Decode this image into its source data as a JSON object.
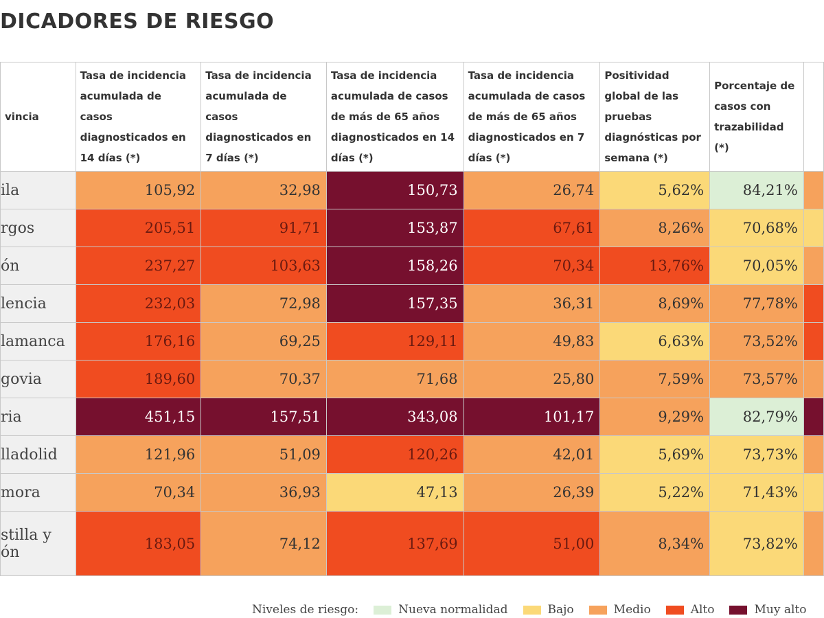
{
  "header": {
    "title": "DICADORES DE RIESGO"
  },
  "table": {
    "columns": [
      "vincia",
      "Tasa de incidencia acumulada de casos diagnosticados en 14 días (*)",
      "Tasa de incidencia acumulada de casos diagnosticados en 7 días (*)",
      "Tasa de incidencia acumulada de casos de más de 65 años diagnosticados en 14 días (*)",
      "Tasa de incidencia acumulada de casos de más de 65 años diagnosticados en 7 días (*)",
      "Positividad global de las pruebas diagnósticas por semana (*)",
      "Porcentaje de casos con trazabilidad (*)"
    ],
    "rows": [
      {
        "label": "ila",
        "cells": [
          {
            "text": "105,92",
            "color": "#f6a25c"
          },
          {
            "text": "32,98",
            "color": "#f6a25c"
          },
          {
            "text": "150,73",
            "color": "#76102e"
          },
          {
            "text": "26,74",
            "color": "#f6a25c"
          },
          {
            "text": "5,62%",
            "color": "#fbd978"
          },
          {
            "text": "84,21%",
            "color": "#dcefd6"
          }
        ],
        "edge": "#f6a25c"
      },
      {
        "label": "rgos",
        "cells": [
          {
            "text": "205,51",
            "color": "#f04c20"
          },
          {
            "text": "91,71",
            "color": "#f04c20"
          },
          {
            "text": "153,87",
            "color": "#76102e"
          },
          {
            "text": "67,61",
            "color": "#f04c20"
          },
          {
            "text": "8,26%",
            "color": "#f6a25c"
          },
          {
            "text": "70,68%",
            "color": "#fbd978"
          }
        ],
        "edge": "#fbd978"
      },
      {
        "label": "ón",
        "cells": [
          {
            "text": "237,27",
            "color": "#f04c20"
          },
          {
            "text": "103,63",
            "color": "#f04c20"
          },
          {
            "text": "158,26",
            "color": "#76102e"
          },
          {
            "text": "70,34",
            "color": "#f04c20"
          },
          {
            "text": "13,76%",
            "color": "#f04c20"
          },
          {
            "text": "70,05%",
            "color": "#fbd978"
          }
        ],
        "edge": "#f6a25c"
      },
      {
        "label": "lencia",
        "cells": [
          {
            "text": "232,03",
            "color": "#f04c20"
          },
          {
            "text": "72,98",
            "color": "#f6a25c"
          },
          {
            "text": "157,35",
            "color": "#76102e"
          },
          {
            "text": "36,31",
            "color": "#f6a25c"
          },
          {
            "text": "8,69%",
            "color": "#f6a25c"
          },
          {
            "text": "77,78%",
            "color": "#f6a25c"
          }
        ],
        "edge": "#f04c20"
      },
      {
        "label": "lamanca",
        "cells": [
          {
            "text": "176,16",
            "color": "#f04c20"
          },
          {
            "text": "69,25",
            "color": "#f6a25c"
          },
          {
            "text": "129,11",
            "color": "#f04c20"
          },
          {
            "text": "49,83",
            "color": "#f6a25c"
          },
          {
            "text": "6,63%",
            "color": "#fbd978"
          },
          {
            "text": "73,52%",
            "color": "#f6a25c"
          }
        ],
        "edge": "#f04c20"
      },
      {
        "label": "govia",
        "cells": [
          {
            "text": "189,60",
            "color": "#f04c20"
          },
          {
            "text": "70,37",
            "color": "#f6a25c"
          },
          {
            "text": "71,68",
            "color": "#f6a25c"
          },
          {
            "text": "25,80",
            "color": "#f6a25c"
          },
          {
            "text": "7,59%",
            "color": "#f6a25c"
          },
          {
            "text": "73,57%",
            "color": "#f6a25c"
          }
        ],
        "edge": "#f6a25c"
      },
      {
        "label": "ria",
        "cells": [
          {
            "text": "451,15",
            "color": "#76102e"
          },
          {
            "text": "157,51",
            "color": "#76102e"
          },
          {
            "text": "343,08",
            "color": "#76102e"
          },
          {
            "text": "101,17",
            "color": "#76102e"
          },
          {
            "text": "9,29%",
            "color": "#f6a25c"
          },
          {
            "text": "82,79%",
            "color": "#dcefd6"
          }
        ],
        "edge": "#76102e"
      },
      {
        "label": "lladolid",
        "cells": [
          {
            "text": "121,96",
            "color": "#f6a25c"
          },
          {
            "text": "51,09",
            "color": "#f6a25c"
          },
          {
            "text": "120,26",
            "color": "#f04c20"
          },
          {
            "text": "42,01",
            "color": "#f6a25c"
          },
          {
            "text": "5,69%",
            "color": "#fbd978"
          },
          {
            "text": "73,73%",
            "color": "#fbd978"
          }
        ],
        "edge": "#f6a25c"
      },
      {
        "label": "mora",
        "cells": [
          {
            "text": "70,34",
            "color": "#f6a25c"
          },
          {
            "text": "36,93",
            "color": "#f6a25c"
          },
          {
            "text": "47,13",
            "color": "#fbd978"
          },
          {
            "text": "26,39",
            "color": "#f6a25c"
          },
          {
            "text": "5,22%",
            "color": "#fbd978"
          },
          {
            "text": "71,43%",
            "color": "#fbd978"
          }
        ],
        "edge": "#fbd978"
      },
      {
        "label": "stilla y ón",
        "cells": [
          {
            "text": "183,05",
            "color": "#f04c20"
          },
          {
            "text": "74,12",
            "color": "#f6a25c"
          },
          {
            "text": "137,69",
            "color": "#f04c20"
          },
          {
            "text": "51,00",
            "color": "#f04c20"
          },
          {
            "text": "8,34%",
            "color": "#f6a25c"
          },
          {
            "text": "73,82%",
            "color": "#fbd978"
          }
        ],
        "edge": "#f6a25c"
      }
    ]
  },
  "legend": {
    "title": "Niveles de riesgo:",
    "items": [
      {
        "label": "Nueva normalidad",
        "color": "#dcefd6"
      },
      {
        "label": "Bajo",
        "color": "#fbd978"
      },
      {
        "label": "Medio",
        "color": "#f6a25c"
      },
      {
        "label": "Alto",
        "color": "#f04c20"
      },
      {
        "label": "Muy alto",
        "color": "#76102e"
      }
    ]
  }
}
